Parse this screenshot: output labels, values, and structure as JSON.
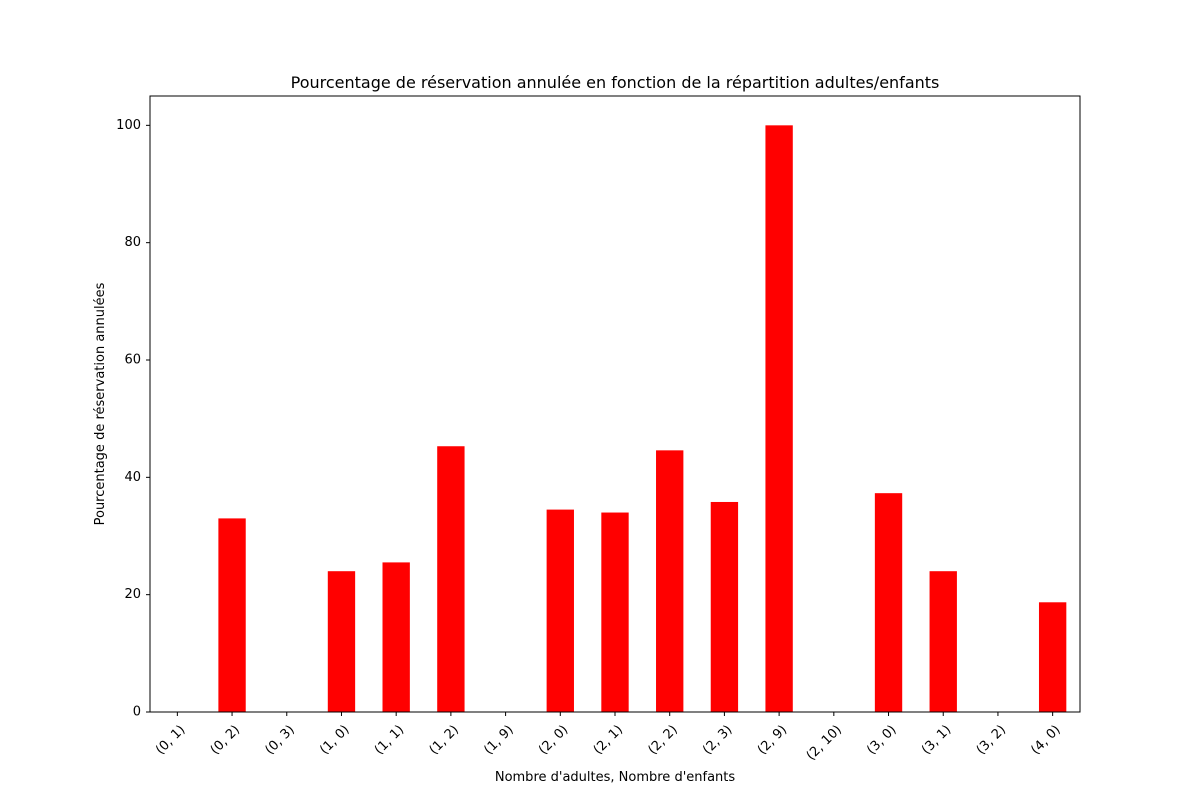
{
  "chart_data": {
    "type": "bar",
    "title": "Pourcentage de réservation annulée en fonction de la répartition adultes/enfants",
    "xlabel": "Nombre d'adultes, Nombre d'enfants",
    "ylabel": "Pourcentage de réservation annulées",
    "categories": [
      "(0, 1)",
      "(0, 2)",
      "(0, 3)",
      "(1, 0)",
      "(1, 1)",
      "(1, 2)",
      "(1, 9)",
      "(2, 0)",
      "(2, 1)",
      "(2, 2)",
      "(2, 3)",
      "(2, 9)",
      "(2, 10)",
      "(3, 0)",
      "(3, 1)",
      "(3, 2)",
      "(4, 0)"
    ],
    "values": [
      0,
      33.0,
      0,
      24.0,
      25.5,
      45.3,
      0,
      34.5,
      34.0,
      44.6,
      35.8,
      100,
      0,
      37.3,
      24.0,
      0,
      18.7
    ],
    "ylim": [
      0,
      105
    ],
    "yticks": [
      0,
      20,
      40,
      60,
      80,
      100
    ],
    "bar_color": "#ff0000",
    "grid": false,
    "legend": false
  }
}
